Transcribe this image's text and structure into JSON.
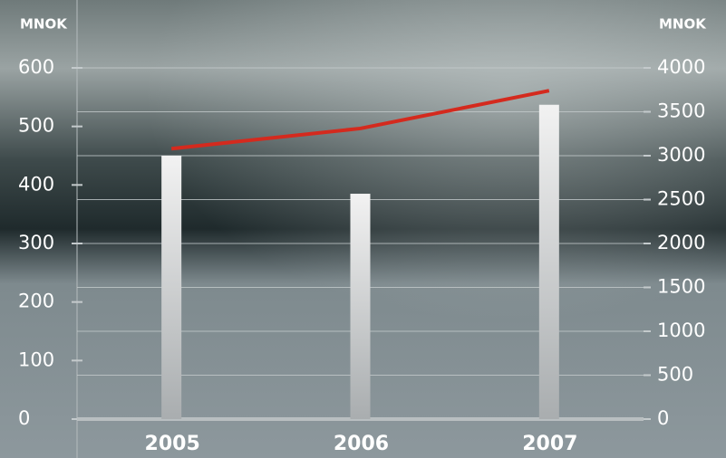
{
  "chart_data": {
    "type": "bar-line",
    "y_label": "MNOK",
    "y2_label": "MNOK",
    "categories": [
      "2005",
      "2006",
      "2007"
    ],
    "series": [
      {
        "type": "bar",
        "color": "#f2f2f2",
        "values": [
          450,
          385,
          537
        ]
      },
      {
        "type": "line",
        "color": "#d42a1e",
        "axis": "y2",
        "values": [
          3080,
          3310,
          3740
        ]
      }
    ],
    "ylim": [
      0,
      600
    ],
    "yticks": [
      0,
      100,
      200,
      300,
      400,
      500,
      600
    ],
    "y2lim": [
      0,
      4000
    ],
    "y2ticks": [
      0,
      500,
      1000,
      1500,
      2000,
      2500,
      3000,
      3500,
      4000
    ],
    "grid": true
  }
}
